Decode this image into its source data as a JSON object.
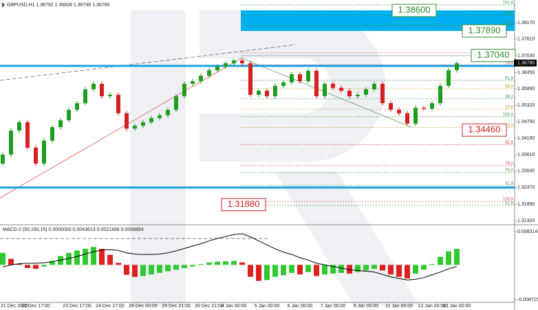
{
  "chart_data": [
    {
      "type": "candlestick",
      "header": "GBPUSD,H1  1.36792 1.36828 1.36748 1.36780",
      "categories": [
        "21 Dec 2020",
        null,
        null,
        null,
        "22 Dec 17:00",
        null,
        null,
        null,
        null,
        "23 Dec 17:00",
        null,
        null,
        null,
        "24 Dec 17:00",
        null,
        null,
        null,
        "28 Dec 00:00",
        null,
        null,
        null,
        "29 Dec 21:00",
        null,
        null,
        null,
        "30 Dec 21:00",
        null,
        null,
        "4 Jan 00:00",
        null,
        null,
        null,
        "5 Jan 00:00",
        null,
        null,
        null,
        "6 Jan 00:00",
        null,
        null,
        null,
        "7 Jan 00:00",
        null,
        null,
        null,
        "8 Jan 00:00",
        null,
        null,
        null,
        "11 Jan 00:00",
        null,
        null,
        null,
        "12 Jan 00:00",
        null,
        null,
        "13 Jan 00:00"
      ],
      "open": [
        1.333,
        1.3361,
        1.3444,
        1.3473,
        1.3385,
        1.333,
        1.3409,
        1.3456,
        1.348,
        1.3516,
        1.3539,
        1.3587,
        1.3606,
        1.3563,
        1.3568,
        1.3504,
        1.3451,
        1.3461,
        1.3473,
        1.3487,
        1.3497,
        1.3516,
        1.3563,
        1.3606,
        1.3615,
        1.3634,
        1.3653,
        1.3665,
        1.3677,
        1.3687,
        1.3677,
        1.3568,
        1.3582,
        1.3563,
        1.3599,
        1.3611,
        1.3639,
        1.3615,
        1.3651,
        1.3563,
        1.3606,
        1.3592,
        1.3582,
        1.3563,
        1.3568,
        1.3587,
        1.3606,
        1.3539,
        1.3516,
        1.3504,
        1.3468,
        1.3523,
        1.352,
        1.3539,
        1.3599,
        1.3653
      ],
      "high": [
        1.3369,
        1.3452,
        1.3481,
        1.3481,
        1.3393,
        1.3417,
        1.3464,
        1.3488,
        1.3524,
        1.3547,
        1.3595,
        1.3614,
        1.3614,
        1.3576,
        1.3576,
        1.3512,
        1.3469,
        1.3481,
        1.3495,
        1.3505,
        1.3524,
        1.3571,
        1.3614,
        1.3623,
        1.3642,
        1.3661,
        1.3673,
        1.3685,
        1.3695,
        1.3695,
        1.3685,
        1.359,
        1.359,
        1.3607,
        1.3619,
        1.3647,
        1.3647,
        1.3659,
        1.3659,
        1.3614,
        1.3614,
        1.36,
        1.359,
        1.3576,
        1.3595,
        1.3614,
        1.3614,
        1.3547,
        1.3524,
        1.3512,
        1.3531,
        1.3531,
        1.3547,
        1.3607,
        1.3661,
        1.3685
      ],
      "low": [
        1.3322,
        1.3353,
        1.3436,
        1.3377,
        1.3322,
        1.3322,
        1.3401,
        1.3448,
        1.3472,
        1.3508,
        1.3531,
        1.3579,
        1.3555,
        1.3555,
        1.3496,
        1.3443,
        1.3443,
        1.3453,
        1.3465,
        1.3479,
        1.3489,
        1.3508,
        1.3555,
        1.3598,
        1.3607,
        1.3626,
        1.3645,
        1.3657,
        1.3669,
        1.3669,
        1.356,
        1.356,
        1.3555,
        1.3555,
        1.3591,
        1.3603,
        1.3607,
        1.3607,
        1.3555,
        1.3555,
        1.3584,
        1.3574,
        1.3555,
        1.3555,
        1.356,
        1.3579,
        1.3531,
        1.3508,
        1.3496,
        1.346,
        1.346,
        1.3512,
        1.3512,
        1.3531,
        1.3591,
        1.3645
      ],
      "close": [
        1.3361,
        1.3444,
        1.3473,
        1.3385,
        1.333,
        1.3409,
        1.3456,
        1.348,
        1.3516,
        1.3539,
        1.3587,
        1.3606,
        1.3563,
        1.3568,
        1.3504,
        1.3451,
        1.3461,
        1.3473,
        1.3487,
        1.3497,
        1.3516,
        1.3563,
        1.3606,
        1.3615,
        1.3634,
        1.3653,
        1.3665,
        1.3677,
        1.3687,
        1.3677,
        1.3568,
        1.3582,
        1.3563,
        1.3599,
        1.3611,
        1.3639,
        1.3615,
        1.3651,
        1.3563,
        1.3606,
        1.3592,
        1.3582,
        1.3563,
        1.3568,
        1.3587,
        1.3606,
        1.3539,
        1.3516,
        1.3504,
        1.3468,
        1.3523,
        1.352,
        1.3539,
        1.3599,
        1.3653,
        1.3677
      ],
      "up_color": "#1e9e1e",
      "down_color": "#d62020",
      "ylim": [
        1.3123,
        1.3896
      ],
      "yticks": [
        {
          "value": 1.3132,
          "label": "1.31320"
        },
        {
          "value": 1.3189,
          "label": "1.31890"
        },
        {
          "value": 1.3247,
          "label": "1.32470"
        },
        {
          "value": 1.3304,
          "label": "1.33040"
        },
        {
          "value": 1.3361,
          "label": "1.33610"
        },
        {
          "value": 1.3418,
          "label": "1.34180"
        },
        {
          "value": 1.3475,
          "label": "1.34750"
        },
        {
          "value": 1.3532,
          "label": "1.35320"
        },
        {
          "value": 1.3589,
          "label": "1.35890"
        },
        {
          "value": 1.3645,
          "label": "1.36450"
        },
        {
          "value": 1.3703,
          "label": "1.37030"
        },
        {
          "value": 1.3761,
          "label": "1.37610"
        },
        {
          "value": 1.3817,
          "label": "1.38170"
        }
      ],
      "zone": {
        "values": [
          1.3789,
          1.386
        ],
        "color": "#00b0f0"
      },
      "levels": [
        {
          "value": 1.3668,
          "color": "#1ca1e0"
        },
        {
          "value": 1.3247,
          "color": "#1ca1e0"
        }
      ],
      "fib_levels": [
        {
          "label": "161.8",
          "value": 1.3879,
          "color": "#3a9a3a"
        },
        {
          "label": "150.0",
          "value": 1.3844,
          "color": "#3a9a3a"
        },
        {
          "label": "138.2",
          "value": 1.3808,
          "color": "#3a9a3a"
        },
        {
          "label": "100.0",
          "value": 1.3713,
          "color": "#e04040"
        },
        {
          "label": "76.0",
          "value": 1.3672,
          "color": "#e04040"
        },
        {
          "label": "61.8",
          "value": 1.3618,
          "color": "#3a9a3a"
        },
        {
          "label": "50.0",
          "value": 1.3589,
          "color": "#d08a00"
        },
        {
          "label": "38.2",
          "value": 1.3554,
          "color": "#3a9a3a"
        },
        {
          "label": "23.6",
          "value": 1.3518,
          "color": "#d08a00"
        },
        {
          "label": "100.0",
          "value": 1.3492,
          "color": "#3a9a3a"
        },
        {
          "label": "0.0",
          "value": 1.3455,
          "color": "#d08a00"
        },
        {
          "label": "61.8",
          "value": 1.3396,
          "color": "#e04040"
        },
        {
          "label": "76.0",
          "value": 1.3323,
          "color": "#e04040"
        },
        {
          "label": "76.0",
          "value": 1.3299,
          "color": "#3a9a3a"
        },
        {
          "label": "61.8",
          "value": 1.3254,
          "color": "#3a9a3a"
        },
        {
          "label": "100.0",
          "value": 1.3199,
          "color": "#e04040"
        },
        {
          "label": "61.8",
          "value": 1.3185,
          "color": "#3a9a3a"
        }
      ],
      "annotations": [
        {
          "text": "1.38600",
          "value": 1.386,
          "color": "#2e8b2e"
        },
        {
          "text": "1.37890",
          "value": 1.3789,
          "color": "#2e8b2e"
        },
        {
          "text": "1.37040",
          "value": 1.3704,
          "color": "#2e8b2e"
        },
        {
          "text": "1.34460",
          "value": 1.3446,
          "color": "#d62020"
        },
        {
          "text": "1.31880",
          "value": 1.3188,
          "color": "#d62020"
        }
      ],
      "last_price": {
        "value": 1.3678,
        "label": "1.36780"
      }
    },
    {
      "type": "macd",
      "header": "MACD-2 (50,150,15) 0.0000000 0.0043613 0.0021498 0.0006894",
      "histogram": [
        0.003,
        0.0015,
        0.0003,
        -0.0008,
        -0.001,
        -0.0004,
        0.001,
        0.0022,
        0.003,
        0.0036,
        0.004,
        0.0045,
        0.004,
        0.0025,
        0.0005,
        -0.0025,
        -0.003,
        -0.0028,
        -0.0024,
        -0.002,
        -0.0016,
        -0.0012,
        -0.0008,
        -0.0004,
        0.0002,
        0.0006,
        0.0008,
        0.0009,
        0.001,
        0.0006,
        -0.003,
        -0.004,
        -0.0038,
        -0.003,
        -0.0026,
        -0.002,
        -0.0024,
        -0.0018,
        -0.0028,
        -0.0024,
        -0.0022,
        -0.002,
        -0.0022,
        -0.0018,
        -0.0014,
        -0.001,
        -0.0014,
        -0.0024,
        -0.003,
        -0.0034,
        -0.0022,
        -0.0012,
        0.0002,
        0.002,
        0.0034,
        0.004
      ],
      "line": {
        "color": "#000000",
        "values": [
          -0.0005,
          0.0,
          0.0003,
          0.0004,
          0.0004,
          0.0005,
          0.0008,
          0.0012,
          0.0016,
          0.0021,
          0.0027,
          0.0033,
          0.0037,
          0.0038,
          0.0036,
          0.003,
          0.0027,
          0.0026,
          0.0026,
          0.0027,
          0.003,
          0.0035,
          0.0041,
          0.0047,
          0.0053,
          0.006,
          0.0066,
          0.0071,
          0.0076,
          0.0078,
          0.007,
          0.006,
          0.005,
          0.004,
          0.0032,
          0.0026,
          0.0018,
          0.0012,
          0.0004,
          0.0,
          -0.0004,
          -0.0008,
          -0.0012,
          -0.0014,
          -0.0016,
          -0.0018,
          -0.0024,
          -0.003,
          -0.0034,
          -0.0038,
          -0.0036,
          -0.0032,
          -0.0025,
          -0.0018,
          -0.001,
          -0.0004
        ]
      },
      "up_color": "#31c831",
      "down_color": "#e02020",
      "ylim": [
        -0.0087153,
        0.0083144
      ],
      "yticks": [
        -0.0087153,
        0.0083144
      ]
    }
  ]
}
